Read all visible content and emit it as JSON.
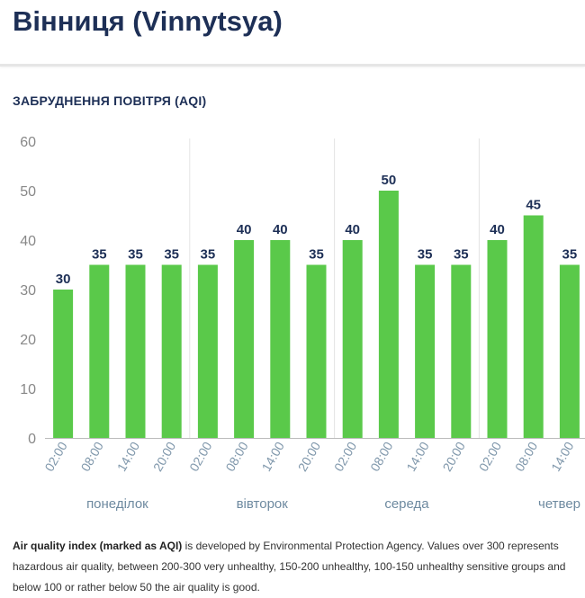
{
  "header": {
    "city_title": "Вінниця (Vinnytsya)",
    "section_title": "ЗАБРУДНЕННЯ ПОВІТРЯ (AQI)"
  },
  "colors": {
    "bar": "#5ac94a",
    "value_label": "#1d2f56",
    "tick_label": "#888888",
    "x_tick_label": "#7f97ab",
    "day_label": "#6e8aa0",
    "grid": "#e4e4e4",
    "axis": "#bbbbbb"
  },
  "chart_data": {
    "type": "bar",
    "title": "",
    "xlabel": "",
    "ylabel": "",
    "ylim": [
      0,
      60
    ],
    "yticks": [
      0,
      10,
      20,
      30,
      40,
      50,
      60
    ],
    "grid": "vertical separators between days",
    "categories": [
      "02:00",
      "08:00",
      "14:00",
      "20:00",
      "02:00",
      "08:00",
      "14:00",
      "20:00",
      "02:00",
      "08:00",
      "14:00",
      "20:00",
      "02:00",
      "08:00",
      "14:00"
    ],
    "values": [
      30,
      35,
      35,
      35,
      35,
      40,
      40,
      35,
      40,
      50,
      35,
      35,
      40,
      45,
      35
    ],
    "data_labels": [
      "30",
      "35",
      "35",
      "35",
      "35",
      "40",
      "40",
      "35",
      "40",
      "50",
      "35",
      "35",
      "40",
      "45",
      "35"
    ],
    "day_groups": [
      {
        "label": "понеділок",
        "start": 0,
        "count": 4
      },
      {
        "label": "вівторок",
        "start": 4,
        "count": 4
      },
      {
        "label": "середа",
        "start": 8,
        "count": 4
      },
      {
        "label": "четвер",
        "start": 12,
        "count": 3
      }
    ]
  },
  "footnote": {
    "bold_part": "Air quality index (marked as AQI)",
    "rest": " is developed by Environmental Protection Agency. Values over 300 represents hazardous air quality, between 200-300 very unhealthy, 150-200 unhealthy, 100-150 unhealthy sensitive groups and below 100 or rather below 50 the air quality is good."
  }
}
